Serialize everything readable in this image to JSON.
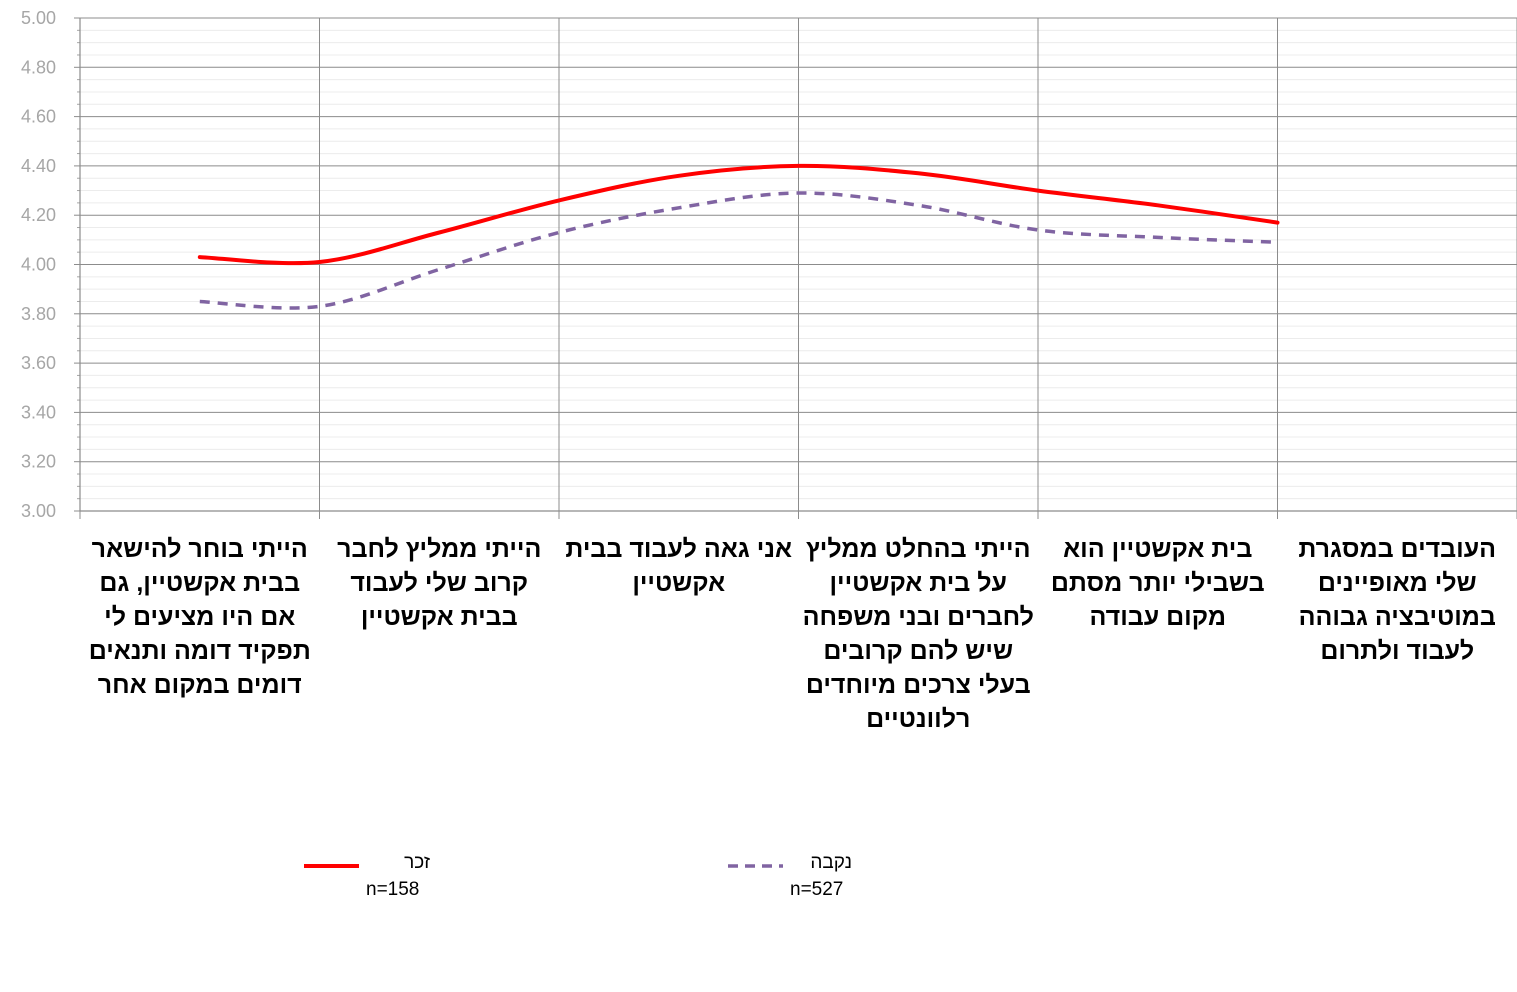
{
  "chart_data": {
    "type": "line",
    "title": "",
    "xlabel": "",
    "ylabel": "",
    "ylim": [
      3.0,
      5.0
    ],
    "y_ticks": [
      "3.00",
      "3.20",
      "3.40",
      "3.60",
      "3.80",
      "4.00",
      "4.20",
      "4.40",
      "4.60",
      "4.80",
      "5.00"
    ],
    "grid": true,
    "smooth": true,
    "categories": [
      "הייתי בוחר להישאר בבית אקשטיין, גם אם היו מציעים לי תפקיד דומה ותנאים דומים במקום אחר",
      "הייתי ממליץ לחבר קרוב שלי לעבוד בבית אקשטיין",
      "אני גאה לעבוד בבית אקשטיין",
      "הייתי בהחלט ממליץ על בית אקשטיין לחברים ובני משפחה שיש להם קרובים בעלי צרכים מיוחדים רלוונטיים",
      "בית אקשטיין הוא בשבילי יותר מסתם מקום עבודה",
      "העובדים במסגרת שלי מאופיינים במוטיבציה גבוהה לעבוד ולתרום"
    ],
    "series": [
      {
        "name": "זכר",
        "n": "n=158",
        "values": [
          4.03,
          4.01,
          4.13,
          4.26,
          4.36,
          4.4,
          4.37,
          4.3,
          4.24,
          4.17
        ],
        "x": [
          0.5,
          1.0,
          1.5,
          2.0,
          2.5,
          3.0,
          3.5,
          4.0,
          4.5,
          5.0
        ],
        "color": "#ff0000",
        "style": "solid"
      },
      {
        "name": "נקבה",
        "n": "n=527",
        "values": [
          3.85,
          3.83,
          3.98,
          4.13,
          4.23,
          4.29,
          4.24,
          4.14,
          4.11,
          4.09
        ],
        "x": [
          0.5,
          1.0,
          1.5,
          2.0,
          2.5,
          3.0,
          3.5,
          4.0,
          4.5,
          5.0
        ],
        "color": "#8064a2",
        "style": "dashed"
      }
    ],
    "legend_position": "bottom"
  }
}
